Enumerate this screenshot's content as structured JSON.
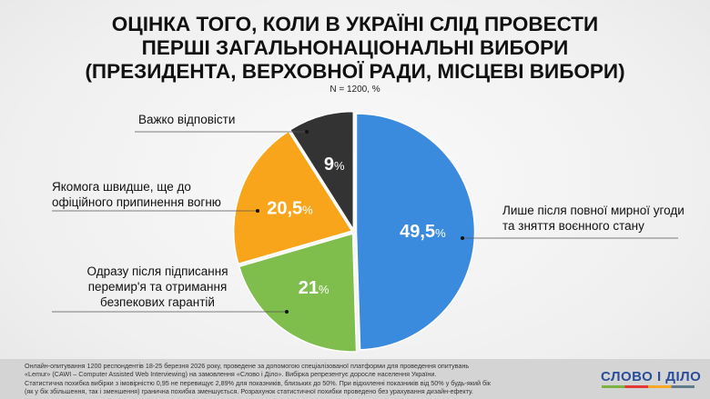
{
  "title": [
    "ОЦІНКА ТОГО, КОЛИ В УКРАЇНІ СЛІД ПРОВЕСТИ",
    "ПЕРШІ ЗАГАЛЬНОНАЦІОНАЛЬНІ ВИБОРИ",
    "(ПРЕЗИДЕНТА, ВЕРХОВНОЇ РАДИ, МІСЦЕВІ ВИБОРИ)"
  ],
  "subtitle": "N = 1200, %",
  "chart_data": {
    "type": "pie",
    "start": "top",
    "direction": "clockwise",
    "slices": [
      {
        "label": "Лише після повної мирної угоди та зняття воєнного стану",
        "value": 49.5,
        "display": "49,5",
        "color": "#3a8ade"
      },
      {
        "label": "Одразу після підписання перемир'я та отримання безпекових гарантій",
        "value": 21,
        "display": "21",
        "color": "#7fbd4c"
      },
      {
        "label": "Якомога швидше, ще до офіційного припинення вогню",
        "value": 20.5,
        "display": "20,5",
        "color": "#f8a51b"
      },
      {
        "label": "Важко відповісти",
        "value": 9,
        "display": "9",
        "color": "#333333"
      }
    ],
    "unit": "%"
  },
  "labels": {
    "s0": [
      "Лише після повної мирної угоди",
      "та зняття воєнного стану"
    ],
    "s1": [
      "Одразу після підписання",
      "перемир'я та отримання",
      "безпекових гарантій"
    ],
    "s2": [
      "Якомога швидше, ще до",
      "офіційного припинення вогню"
    ],
    "s3": [
      "Важко відповісти"
    ]
  },
  "footer": [
    "Онлайн-опитування 1200 респондентів 18-25 березня 2026 року, проведене за допомогою спеціалізованої платформи для проведення опитувань",
    "«Lemur» (CAWI – Computer Assisted Web Interviewing) на замовлення «Слово і Діло». Вибірка репрезентує доросле населення України.",
    "Статистична похибка вибірки з імовірністю 0,95 не перевищує 2,89% для показників, близьких до 50%. При відхиленні показників від 50% у будь-який бік",
    "(як у бік збільшення, так і зменшення) гранична похибка зменшується. Розрахунок статистичної похибки проведено без урахування дизайн-ефекту."
  ],
  "logo": "СЛОВО І ДІЛО"
}
